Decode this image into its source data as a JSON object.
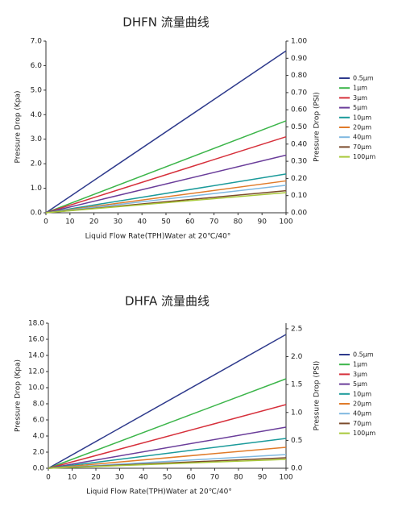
{
  "chart_data": [
    {
      "type": "line",
      "title": "DHFN 流量曲线",
      "y_label": "Pressure Drop (Kpa)",
      "y2_label": "Pressure Drop (PSI)",
      "x_label": "Liquid Flow Rate(TPH)Water  at  20℃/40°",
      "x": [
        0,
        100
      ],
      "xlim": [
        0,
        100
      ],
      "xticks": [
        0,
        10,
        20,
        30,
        40,
        50,
        60,
        70,
        80,
        90,
        100
      ],
      "ylim": [
        0,
        7
      ],
      "yticks": [
        {
          "value": 0,
          "label": "0.0"
        },
        {
          "value": 1,
          "label": "1.0"
        },
        {
          "value": 2,
          "label": "2.0"
        },
        {
          "value": 3,
          "label": "3.0"
        },
        {
          "value": 4,
          "label": "4.0"
        },
        {
          "value": 5,
          "label": "5.0"
        },
        {
          "value": 6,
          "label": "6.0"
        },
        {
          "value": 7,
          "label": "7.0"
        }
      ],
      "y2lim": [
        0,
        1
      ],
      "y2ticks": [
        {
          "value": 0,
          "label": "0.00"
        },
        {
          "value": 0.1,
          "label": "0.10"
        },
        {
          "value": 0.2,
          "label": "0.20"
        },
        {
          "value": 0.3,
          "label": "0.30"
        },
        {
          "value": 0.4,
          "label": "0.40"
        },
        {
          "value": 0.5,
          "label": "0.50"
        },
        {
          "value": 0.6,
          "label": "0.60"
        },
        {
          "value": 0.7,
          "label": "0.70"
        },
        {
          "value": 0.8,
          "label": "0.80"
        },
        {
          "value": 0.9,
          "label": "0.90"
        },
        {
          "value": 1,
          "label": "1.00"
        }
      ],
      "grid": false,
      "legend": "right",
      "series": [
        {
          "name": "0.5μm",
          "color": "#2e3a8c",
          "values": [
            0,
            6.6
          ]
        },
        {
          "name": "1μm",
          "color": "#3cb54a",
          "values": [
            0,
            3.75
          ]
        },
        {
          "name": "3μm",
          "color": "#d6303b",
          "values": [
            0,
            3.1
          ]
        },
        {
          "name": "5μm",
          "color": "#6a3d9a",
          "values": [
            0,
            2.35
          ]
        },
        {
          "name": "10μm",
          "color": "#1a9a9a",
          "values": [
            0,
            1.58
          ]
        },
        {
          "name": "20μm",
          "color": "#e07b2a",
          "values": [
            0,
            1.3
          ]
        },
        {
          "name": "40μm",
          "color": "#7fb8e0",
          "values": [
            0,
            1.12
          ]
        },
        {
          "name": "70μm",
          "color": "#7a4a2a",
          "values": [
            0,
            0.9
          ]
        },
        {
          "name": "100μm",
          "color": "#a8c83a",
          "values": [
            0,
            0.82
          ]
        }
      ]
    },
    {
      "type": "line",
      "title": "DHFA 流量曲线",
      "y_label": "Pressure Drop (Kpa)",
      "y2_label": "Pressure Drop (PSI)",
      "x_label": "Liquid Flow Rate(TPH)Water  at  20℃/40°",
      "x": [
        0,
        100
      ],
      "xlim": [
        0,
        100
      ],
      "xticks": [
        0,
        10,
        20,
        30,
        40,
        50,
        60,
        70,
        80,
        90,
        100
      ],
      "ylim": [
        0,
        18
      ],
      "yticks": [
        {
          "value": 0,
          "label": "0.0"
        },
        {
          "value": 2,
          "label": "2.0"
        },
        {
          "value": 4,
          "label": "4.0"
        },
        {
          "value": 6,
          "label": "6.0"
        },
        {
          "value": 8,
          "label": "8.0"
        },
        {
          "value": 10,
          "label": "10.0"
        },
        {
          "value": 12,
          "label": "12.0"
        },
        {
          "value": 14,
          "label": "14.0"
        },
        {
          "value": 16,
          "label": "16.0"
        },
        {
          "value": 18,
          "label": "18.0"
        }
      ],
      "y2lim": [
        0,
        2.6
      ],
      "y2ticks": [
        {
          "value": 0,
          "label": "0.0"
        },
        0.5,
        {
          "value": 1,
          "label": "1.0"
        },
        1.5,
        {
          "value": 2,
          "label": "2.0"
        },
        2.5
      ],
      "grid": false,
      "legend": "right",
      "series": [
        {
          "name": "0.5μm",
          "color": "#2e3a8c",
          "values": [
            0,
            16.6
          ]
        },
        {
          "name": "1μm",
          "color": "#3cb54a",
          "values": [
            0,
            11.1
          ]
        },
        {
          "name": "3μm",
          "color": "#d6303b",
          "values": [
            0,
            7.9
          ]
        },
        {
          "name": "5μm",
          "color": "#6a3d9a",
          "values": [
            0,
            5.1
          ]
        },
        {
          "name": "10μm",
          "color": "#1a9a9a",
          "values": [
            0,
            3.7
          ]
        },
        {
          "name": "20μm",
          "color": "#e07b2a",
          "values": [
            0,
            2.6
          ]
        },
        {
          "name": "40μm",
          "color": "#7fb8e0",
          "values": [
            0,
            1.7
          ]
        },
        {
          "name": "70μm",
          "color": "#7a4a2a",
          "values": [
            0,
            1.3
          ]
        },
        {
          "name": "100μm",
          "color": "#a8c83a",
          "values": [
            0,
            1.1
          ]
        }
      ]
    }
  ]
}
